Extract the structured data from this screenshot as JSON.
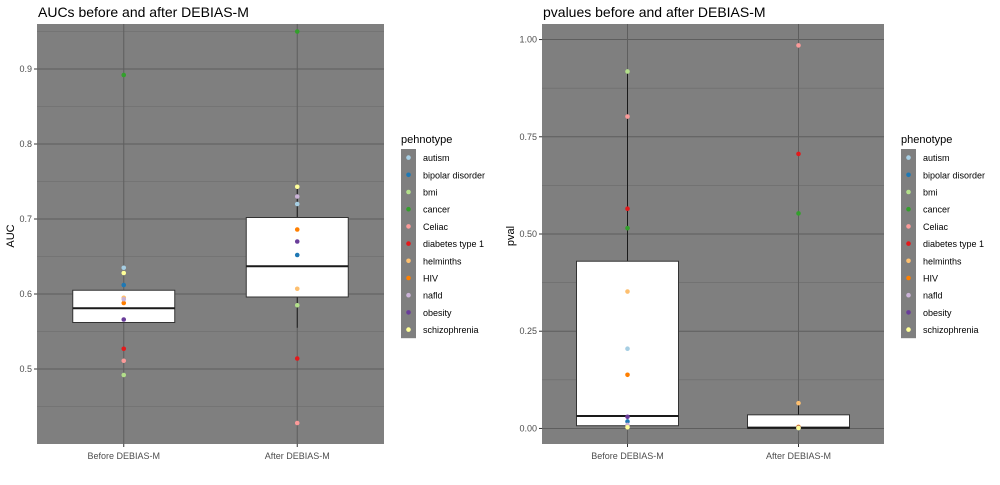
{
  "panels": [
    {
      "title": "AUCs before and after DEBIAS-M",
      "ylabel": "AUC",
      "legend_title": "pehnotype"
    },
    {
      "title": "pvalues before and after DEBIAS-M",
      "ylabel": "pval",
      "legend_title": "phenotype"
    }
  ],
  "chart_data": [
    {
      "type": "box",
      "title": "AUCs before and after DEBIAS-M",
      "xlabel": "",
      "ylabel": "AUC",
      "categories": [
        "Before DEBIAS-M",
        "After DEBIAS-M"
      ],
      "ylim": [
        0.4,
        0.96
      ],
      "yticks": [
        0.5,
        0.6,
        0.7,
        0.8,
        0.9
      ],
      "ytick_labels": [
        "0.5",
        "0.6",
        "0.7",
        "0.8",
        "0.9"
      ],
      "grid": true,
      "background": "#7f7f7f",
      "legend_title": "pehnotype",
      "legend_position": "right",
      "boxes": [
        {
          "category": "Before DEBIAS-M",
          "q1": 0.562,
          "median": 0.581,
          "q3": 0.605,
          "whisker_low": 0.562,
          "whisker_high": 0.605
        },
        {
          "category": "After DEBIAS-M",
          "q1": 0.596,
          "median": 0.637,
          "q3": 0.702,
          "whisker_low": 0.555,
          "whisker_high": 0.742
        }
      ],
      "series": [
        {
          "name": "autism",
          "color": "#a6cee3",
          "values": [
            0.635,
            0.72
          ]
        },
        {
          "name": "bipolar disorder",
          "color": "#1f78b4",
          "values": [
            0.612,
            0.652
          ]
        },
        {
          "name": "bmi",
          "color": "#b2df8a",
          "values": [
            0.492,
            0.585
          ]
        },
        {
          "name": "cancer",
          "color": "#33a02c",
          "values": [
            0.892,
            0.95
          ]
        },
        {
          "name": "Celiac",
          "color": "#fb9a99",
          "values": [
            0.511,
            0.428
          ]
        },
        {
          "name": "diabetes type 1",
          "color": "#e31a1c",
          "values": [
            0.527,
            0.514
          ]
        },
        {
          "name": "helminths",
          "color": "#fdbf6f",
          "values": [
            0.595,
            0.607
          ]
        },
        {
          "name": "HIV",
          "color": "#ff7f00",
          "values": [
            0.588,
            0.686
          ]
        },
        {
          "name": "nafld",
          "color": "#cab2d6",
          "values": [
            0.593,
            0.73
          ]
        },
        {
          "name": "obesity",
          "color": "#6a3d9a",
          "values": [
            0.566,
            0.67
          ]
        },
        {
          "name": "schizophrenia",
          "color": "#ffff99",
          "values": [
            0.628,
            0.743
          ]
        }
      ]
    },
    {
      "type": "box",
      "title": "pvalues before and after DEBIAS-M",
      "xlabel": "",
      "ylabel": "pval",
      "categories": [
        "Before DEBIAS-M",
        "After DEBIAS-M"
      ],
      "ylim": [
        -0.04,
        1.04
      ],
      "yticks": [
        0,
        0.25,
        0.5,
        0.75,
        1.0
      ],
      "ytick_labels": [
        "0.00",
        "0.25",
        "0.50",
        "0.75",
        "1.00"
      ],
      "grid": true,
      "background": "#7f7f7f",
      "legend_title": "phenotype",
      "legend_position": "right",
      "boxes": [
        {
          "category": "Before DEBIAS-M",
          "q1": 0.007,
          "median": 0.032,
          "q3": 0.43,
          "whisker_low": 0.0,
          "whisker_high": 0.918
        },
        {
          "category": "After DEBIAS-M",
          "q1": 0.0,
          "median": 0.002,
          "q3": 0.035,
          "whisker_low": 0.0,
          "whisker_high": 0.065
        }
      ],
      "series": [
        {
          "name": "autism",
          "color": "#a6cee3",
          "values": [
            0.205,
            0.002
          ]
        },
        {
          "name": "bipolar disorder",
          "color": "#1f78b4",
          "values": [
            0.018,
            0.001
          ]
        },
        {
          "name": "bmi",
          "color": "#b2df8a",
          "values": [
            0.918,
            0.003
          ]
        },
        {
          "name": "cancer",
          "color": "#33a02c",
          "values": [
            0.515,
            0.553
          ]
        },
        {
          "name": "Celiac",
          "color": "#fb9a99",
          "values": [
            0.802,
            0.985
          ]
        },
        {
          "name": "diabetes type 1",
          "color": "#e31a1c",
          "values": [
            0.565,
            0.706
          ]
        },
        {
          "name": "helminths",
          "color": "#fdbf6f",
          "values": [
            0.352,
            0.065
          ]
        },
        {
          "name": "HIV",
          "color": "#ff7f00",
          "values": [
            0.138,
            0.004
          ]
        },
        {
          "name": "nafld",
          "color": "#cab2d6",
          "values": [
            0.009,
            0.001
          ]
        },
        {
          "name": "obesity",
          "color": "#6a3d9a",
          "values": [
            0.03,
            0.002
          ]
        },
        {
          "name": "schizophrenia",
          "color": "#ffff99",
          "values": [
            0.003,
            0.001
          ]
        }
      ]
    }
  ]
}
